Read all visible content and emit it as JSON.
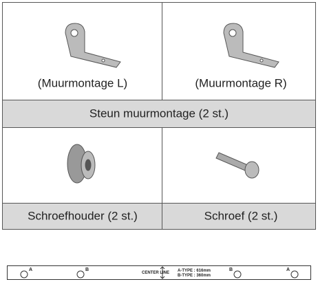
{
  "table": {
    "rows": [
      [
        "(Muurmontage L)",
        "(Muurmontage R)"
      ],
      [
        "Steun muurmontage (2 st.)"
      ],
      [
        "Schroefhouder (2 st.)",
        "Schroef (2 st.)"
      ]
    ]
  },
  "strip": {
    "markers": [
      "A",
      "B",
      "B",
      "A"
    ],
    "center_label": "CENTER LINE",
    "types": [
      "A-TYPE : 616mm",
      "B-TYPE : 360mm"
    ]
  }
}
